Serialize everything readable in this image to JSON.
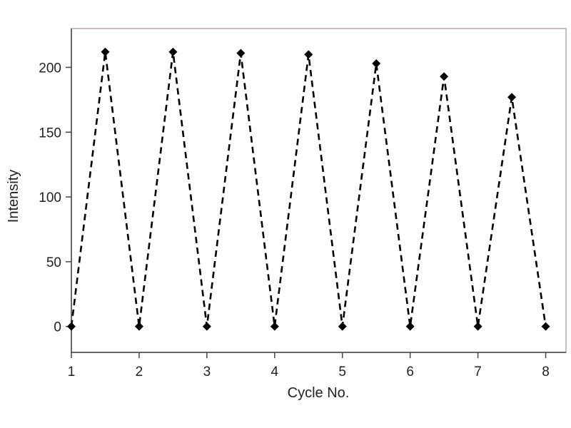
{
  "chart_data": {
    "type": "line",
    "title": "",
    "xlabel": "Cycle No.",
    "ylabel": "Intensity",
    "xlim": [
      1,
      8.3
    ],
    "ylim": [
      -20,
      230
    ],
    "x_ticks": [
      1,
      2,
      3,
      4,
      5,
      6,
      7,
      8
    ],
    "y_ticks": [
      0,
      50,
      100,
      150,
      200
    ],
    "grid": false,
    "legend": "none",
    "line_style": "dashed",
    "marker": "diamond",
    "colors": {
      "line": "#000000",
      "marker": "#000000",
      "frame": "#b9a7a2"
    },
    "series": [
      {
        "x": [
          1,
          1.5,
          2,
          2.5,
          3,
          3.5,
          4,
          4.5,
          5,
          5.5,
          6,
          6.5,
          7,
          7.5,
          8
        ],
        "y": [
          0,
          212,
          0,
          212,
          0,
          211,
          0,
          210,
          0,
          203,
          0,
          193,
          0,
          177,
          0
        ]
      }
    ]
  }
}
